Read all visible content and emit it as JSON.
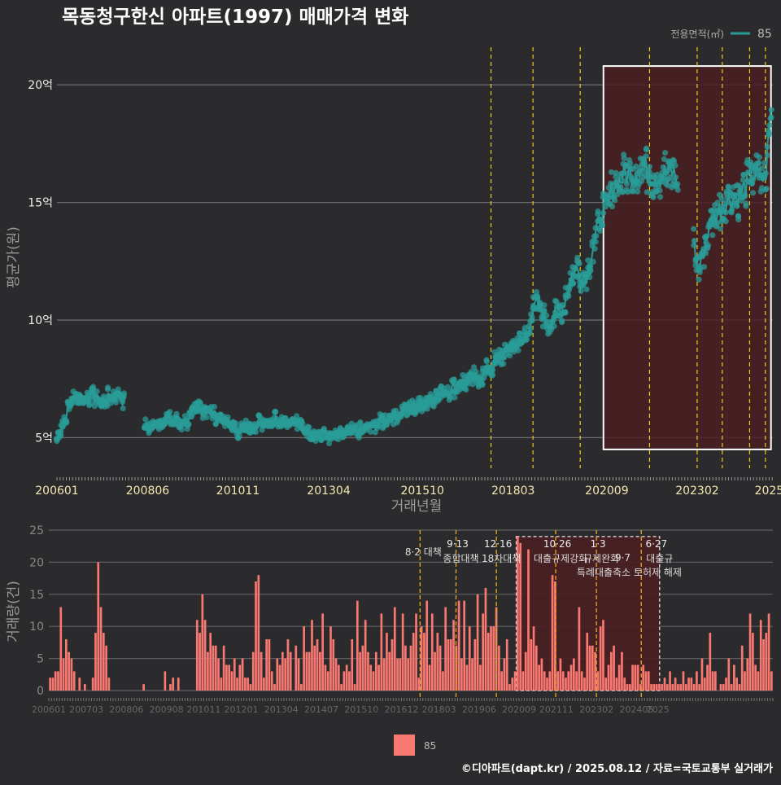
{
  "title": "목동청구한신 아파트(1997) 매매가격 변화",
  "footer": "©디아파트(dapt.kr) / 2025.08.12 / 자료=국토교통부 실거래가",
  "colors": {
    "background": "#2b2b2d",
    "price_series": "#2a9c98",
    "volume_bars": "#fa7872",
    "policy_line": "#e8d020",
    "highlight_fill": "#4a1f22"
  },
  "chart_data": [
    {
      "type": "line",
      "name": "price",
      "ylabel": "평균가(원)",
      "xlabel": "거래년월",
      "ylim": [
        3.7,
        21.6
      ],
      "y_ticks": [
        5,
        10,
        15,
        20
      ],
      "y_tick_labels": [
        "5억",
        "10억",
        "15억",
        "20억"
      ],
      "x_ticks": [
        2006.0,
        2008.42,
        2010.83,
        2013.25,
        2015.75,
        2018.17,
        2020.67,
        2023.08,
        2025.0
      ],
      "x_tick_labels": [
        "200601",
        "200806",
        "201011",
        "201304",
        "201510",
        "201803",
        "202009",
        "202302",
        "2025"
      ],
      "xlim": [
        2006.0,
        2025.1
      ],
      "grid": true,
      "legend_title": "전용면적(㎡)",
      "legend_entry": "85",
      "legend_position": "top-right",
      "policy_lines": [
        2017.58,
        2018.7,
        2019.96,
        2021.81,
        2023.08,
        2023.75,
        2024.48,
        2024.9
      ],
      "highlight_range": [
        2020.58,
        2025.05
      ],
      "highlight_y": [
        4.5,
        20.8
      ],
      "anchors": [
        [
          2006.0,
          5.0
        ],
        [
          2006.4,
          6.6
        ],
        [
          2006.9,
          6.8
        ],
        [
          2007.2,
          6.5
        ],
        [
          2007.6,
          6.9
        ],
        [
          2008.4,
          5.4
        ],
        [
          2008.9,
          5.8
        ],
        [
          2009.4,
          5.6
        ],
        [
          2009.8,
          6.3
        ],
        [
          2010.3,
          5.9
        ],
        [
          2010.8,
          5.3
        ],
        [
          2011.3,
          5.6
        ],
        [
          2011.8,
          5.8
        ],
        [
          2012.3,
          5.7
        ],
        [
          2012.8,
          5.2
        ],
        [
          2013.3,
          5.0
        ],
        [
          2013.8,
          5.2
        ],
        [
          2014.3,
          5.4
        ],
        [
          2014.8,
          5.8
        ],
        [
          2015.3,
          6.2
        ],
        [
          2015.8,
          6.5
        ],
        [
          2016.3,
          6.9
        ],
        [
          2016.8,
          7.3
        ],
        [
          2017.3,
          7.6
        ],
        [
          2017.6,
          8.0
        ],
        [
          2017.9,
          8.6
        ],
        [
          2018.2,
          8.9
        ],
        [
          2018.5,
          9.3
        ],
        [
          2018.8,
          10.8
        ],
        [
          2019.1,
          9.8
        ],
        [
          2019.5,
          10.6
        ],
        [
          2019.8,
          12.2
        ],
        [
          2020.1,
          11.8
        ],
        [
          2020.35,
          13.5
        ],
        [
          2020.6,
          14.7
        ],
        [
          2020.9,
          15.8
        ],
        [
          2021.2,
          16.2
        ],
        [
          2021.6,
          16.4
        ],
        [
          2022.0,
          16.1
        ],
        [
          2022.4,
          16.3
        ],
        [
          2022.8,
          15.6
        ],
        [
          2023.1,
          12.0
        ],
        [
          2023.4,
          14.0
        ],
        [
          2023.8,
          15.0
        ],
        [
          2024.2,
          15.3
        ],
        [
          2024.6,
          16.2
        ],
        [
          2024.9,
          16.0
        ],
        [
          2025.05,
          19.0
        ]
      ],
      "gaps": [
        [
          2007.8,
          2008.3
        ],
        [
          2022.55,
          2023.0
        ]
      ]
    },
    {
      "type": "bar",
      "name": "volume",
      "ylabel": "거래량(건)",
      "ylim": [
        0,
        25
      ],
      "y_ticks": [
        0,
        5,
        10,
        15,
        20,
        25
      ],
      "y_tick_labels": [
        "0",
        "5",
        "10",
        "15",
        "20",
        "25"
      ],
      "x_ticks": [
        2006.0,
        2007.17,
        2008.42,
        2009.67,
        2010.83,
        2012.0,
        2013.25,
        2014.5,
        2015.75,
        2017.0,
        2018.17,
        2019.42,
        2020.67,
        2021.83,
        2023.08,
        2024.33,
        2025.0
      ],
      "x_tick_labels": [
        "200601",
        "200703",
        "200806",
        "200908",
        "201011",
        "201201",
        "201304",
        "201407",
        "201510",
        "201612",
        "201803",
        "201906",
        "202009",
        "202111",
        "202302",
        "202405",
        "2025"
      ],
      "legend_entry": "85",
      "legend_position": "bottom",
      "highlight_range": [
        2020.58,
        2025.05
      ],
      "policy_lines": [
        2017.58,
        2018.7,
        2019.96,
        2021.81,
        2023.08,
        2024.48
      ],
      "annotations": [
        {
          "x": 2017.58,
          "line1": "",
          "line2": "8·2 대책"
        },
        {
          "x": 2018.7,
          "line1": "9·13",
          "line2": "종합대책"
        },
        {
          "x": 2019.96,
          "line1": "12·16",
          "line2": "18차대책"
        },
        {
          "x": 2021.81,
          "line1": "10·26",
          "line2": "대출규제강화"
        },
        {
          "x": 2023.08,
          "line1": "1·3",
          "line2": "규제완화"
        },
        {
          "x": 2023.75,
          "line1": "",
          "line2": "9·7"
        },
        {
          "x": 2023.95,
          "line1": "",
          "line2": "특례대출축소 토허제 해제"
        },
        {
          "x": 2024.9,
          "line1": "6·27",
          "line2": "대출규"
        }
      ],
      "values": [
        2,
        2,
        3,
        3,
        13,
        5,
        8,
        6,
        5,
        3,
        0,
        2,
        0,
        1,
        0,
        0,
        2,
        9,
        20,
        13,
        9,
        7,
        2,
        0,
        0,
        0,
        0,
        0,
        0,
        0,
        0,
        0,
        0,
        0,
        0,
        1,
        0,
        0,
        0,
        0,
        0,
        0,
        0,
        3,
        0,
        1,
        2,
        0,
        2,
        0,
        0,
        0,
        0,
        0,
        0,
        11,
        9,
        15,
        11,
        6,
        9,
        7,
        7,
        5,
        2,
        7,
        4,
        4,
        3,
        5,
        2,
        4,
        5,
        2,
        2,
        1,
        6,
        17,
        18,
        6,
        2,
        8,
        8,
        3,
        1,
        5,
        4,
        6,
        5,
        8,
        6,
        0,
        7,
        5,
        1,
        10,
        6,
        6,
        11,
        7,
        8,
        6,
        12,
        4,
        3,
        10,
        8,
        5,
        4,
        1,
        3,
        4,
        3,
        8,
        1,
        14,
        6,
        7,
        11,
        6,
        4,
        3,
        6,
        4,
        12,
        5,
        9,
        6,
        8,
        13,
        5,
        5,
        12,
        7,
        5,
        7,
        9,
        12,
        2,
        10,
        9,
        14,
        4,
        12,
        6,
        9,
        7,
        3,
        13,
        8,
        8,
        11,
        7,
        14,
        5,
        14,
        4,
        10,
        5,
        8,
        15,
        4,
        12,
        16,
        9,
        10,
        10,
        13,
        7,
        3,
        5,
        8,
        1,
        2,
        3,
        24,
        23,
        3,
        6,
        22,
        8,
        10,
        7,
        4,
        5,
        3,
        2,
        3,
        18,
        17,
        3,
        5,
        3,
        2,
        3,
        4,
        5,
        3,
        13,
        3,
        2,
        9,
        7,
        7,
        6,
        3,
        10,
        11,
        2,
        4,
        6,
        7,
        2,
        4,
        6,
        2,
        1,
        1,
        4,
        4,
        4,
        1,
        4,
        3,
        3,
        1,
        1,
        1,
        1,
        1,
        2,
        1,
        3,
        1,
        2,
        1,
        1,
        3,
        1,
        2,
        2,
        1,
        3,
        1,
        5,
        2,
        4,
        9,
        3,
        3,
        0,
        1,
        1,
        2,
        5,
        1,
        4,
        2,
        1,
        7,
        3,
        5,
        12,
        9,
        4,
        3,
        11,
        8,
        9,
        12,
        3
      ]
    }
  ]
}
